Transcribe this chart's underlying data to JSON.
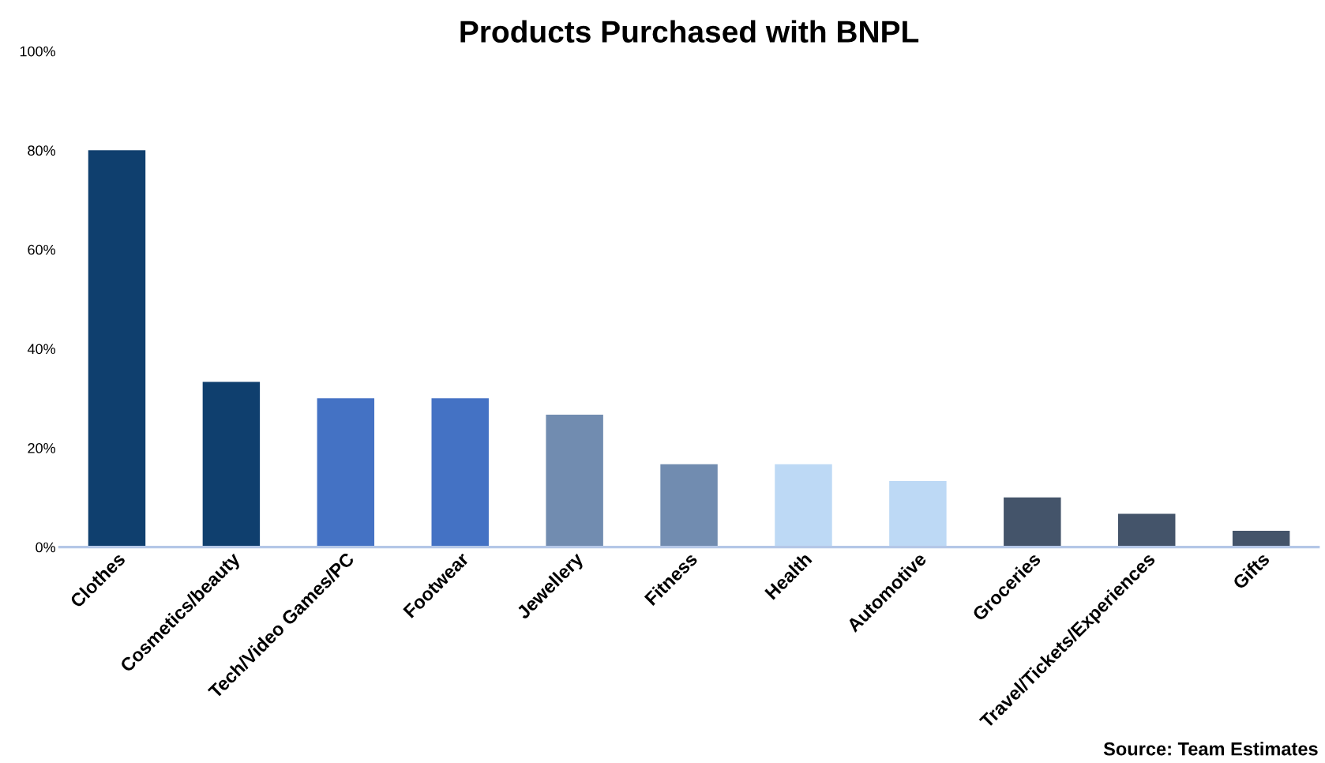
{
  "chart_data": {
    "type": "bar",
    "title": "Products Purchased with BNPL",
    "categories": [
      "Clothes",
      "Cosmetics/beauty",
      "Tech/Video Games/PC",
      "Footwear",
      "Jewellery",
      "Fitness",
      "Health",
      "Automotive",
      "Groceries",
      "Travel/Tickets/Experiences",
      "Gifts"
    ],
    "values": [
      80,
      33.3,
      30,
      30,
      26.7,
      16.7,
      16.7,
      13.3,
      10,
      6.7,
      3.3
    ],
    "colors": [
      "#0f3f6e",
      "#0f3f6e",
      "#4472c4",
      "#4472c4",
      "#718cb0",
      "#718cb0",
      "#bdd9f5",
      "#bdd9f5",
      "#44546a",
      "#44546a",
      "#44546a"
    ],
    "ylim": [
      0,
      100
    ],
    "yticks": [
      {
        "value": 0,
        "label": "0%"
      },
      {
        "value": 20,
        "label": "20%"
      },
      {
        "value": 40,
        "label": "40%"
      },
      {
        "value": 60,
        "label": "60%"
      },
      {
        "value": 80,
        "label": "80%"
      },
      {
        "value": 100,
        "label": "100%"
      }
    ],
    "grid": false,
    "annotations": [
      "Source: Team Estimates"
    ]
  }
}
